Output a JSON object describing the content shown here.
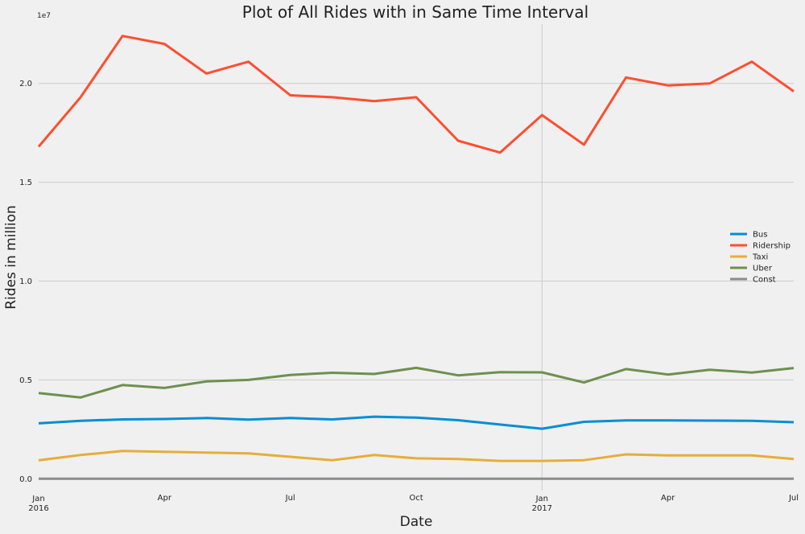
{
  "chart_data": {
    "type": "line",
    "title": "Plot of All Rides with in Same Time Interval",
    "xlabel": "Date",
    "ylabel": "Rides in million",
    "y_exponent_label": "1e7",
    "x": [
      "2016-01",
      "2016-02",
      "2016-03",
      "2016-04",
      "2016-05",
      "2016-06",
      "2016-07",
      "2016-08",
      "2016-09",
      "2016-10",
      "2016-11",
      "2016-12",
      "2017-01",
      "2017-02",
      "2017-03",
      "2017-04",
      "2017-05",
      "2017-06",
      "2017-07"
    ],
    "x_range": [
      "2016-01",
      "2017-07"
    ],
    "ylim": [
      -0.06,
      2.3
    ],
    "y_ticks": [
      {
        "value": 0.0,
        "label": "0.0"
      },
      {
        "value": 0.5,
        "label": "0.5"
      },
      {
        "value": 1.0,
        "label": "1.0"
      },
      {
        "value": 1.5,
        "label": "1.5"
      },
      {
        "value": 2.0,
        "label": "2.0"
      }
    ],
    "x_ticks": [
      {
        "x": "2016-01",
        "label": "Jan",
        "sublabel": "2016",
        "major": true
      },
      {
        "x": "2016-04",
        "label": "Apr",
        "sublabel": "",
        "major": false
      },
      {
        "x": "2016-07",
        "label": "Jul",
        "sublabel": "",
        "major": false
      },
      {
        "x": "2016-10",
        "label": "Oct",
        "sublabel": "",
        "major": false
      },
      {
        "x": "2017-01",
        "label": "Jan",
        "sublabel": "2017",
        "major": true
      },
      {
        "x": "2017-04",
        "label": "Apr",
        "sublabel": "",
        "major": false
      },
      {
        "x": "2017-07",
        "label": "Jul",
        "sublabel": "",
        "major": false
      }
    ],
    "grid": true,
    "legend_position": "right",
    "series": [
      {
        "name": "Bus",
        "color": "#008fd5",
        "values": [
          0.28,
          0.293,
          0.3,
          0.302,
          0.307,
          0.299,
          0.307,
          0.3,
          0.314,
          0.309,
          0.296,
          0.274,
          0.253,
          0.288,
          0.295,
          0.295,
          0.294,
          0.293,
          0.286
        ]
      },
      {
        "name": "Ridership",
        "color": "#fc4f30",
        "values": [
          1.68,
          1.93,
          2.24,
          2.2,
          2.05,
          2.11,
          1.94,
          1.93,
          1.91,
          1.93,
          1.71,
          1.65,
          1.84,
          1.69,
          2.03,
          1.99,
          2.0,
          2.11,
          1.96
        ]
      },
      {
        "name": "Taxi",
        "color": "#e5ae38",
        "values": [
          0.093,
          0.12,
          0.14,
          0.136,
          0.132,
          0.128,
          0.111,
          0.094,
          0.12,
          0.103,
          0.1,
          0.09,
          0.09,
          0.094,
          0.123,
          0.118,
          0.118,
          0.118,
          0.1
        ]
      },
      {
        "name": "Uber",
        "color": "#6d904f",
        "values": [
          0.433,
          0.411,
          0.474,
          0.459,
          0.492,
          0.5,
          0.525,
          0.536,
          0.53,
          0.561,
          0.523,
          0.539,
          0.538,
          0.487,
          0.555,
          0.527,
          0.551,
          0.537,
          0.56
        ]
      },
      {
        "name": "Const",
        "color": "#8b8b8b",
        "values": [
          0,
          0,
          0,
          0,
          0,
          0,
          0,
          0,
          0,
          0,
          0,
          0,
          0,
          0,
          0,
          0,
          0,
          0,
          0
        ]
      }
    ]
  }
}
